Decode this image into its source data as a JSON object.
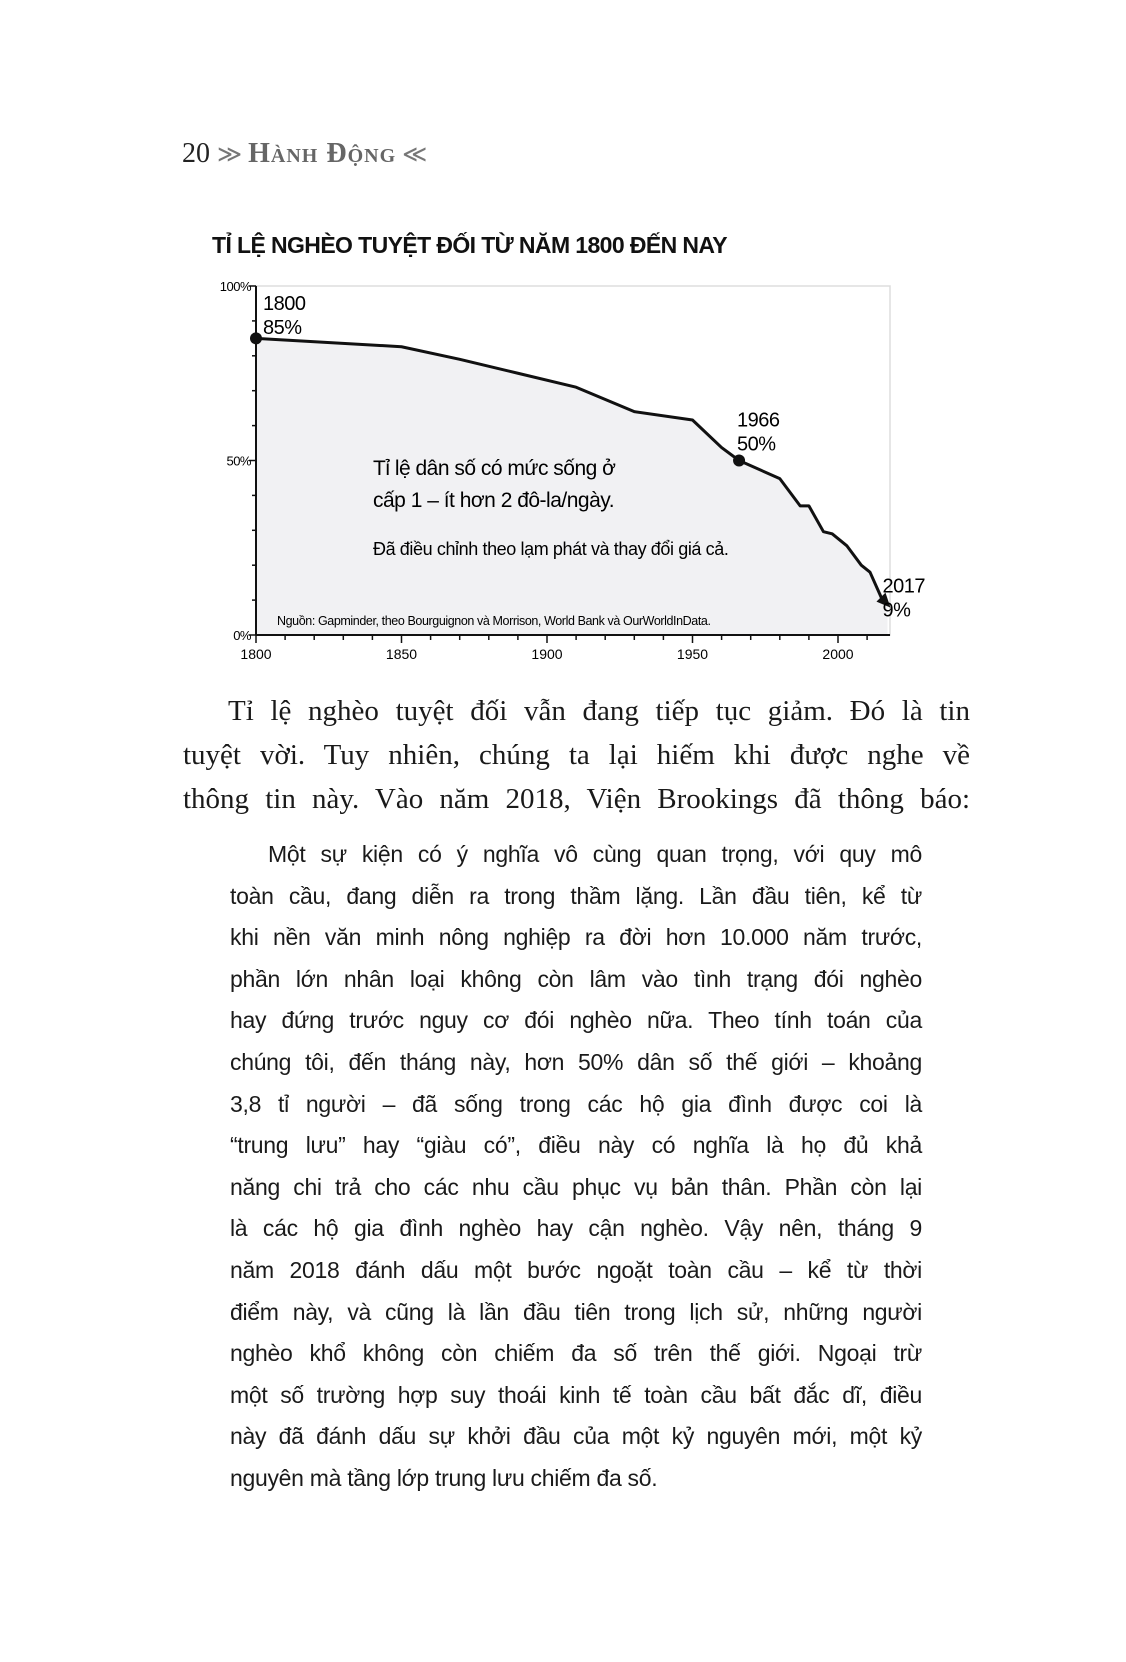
{
  "header": {
    "page_number": "20",
    "running_title": "Hành Động",
    "left_ornament": "≫",
    "right_ornament": "≪"
  },
  "chart_data": {
    "type": "area",
    "title": "TỈ LỆ NGHÈO TUYỆT ĐỐI TỪ NĂM 1800 ĐẾN NAY",
    "xlabel": "",
    "ylabel": "",
    "xlim": [
      1800,
      2018
    ],
    "ylim": [
      0,
      100
    ],
    "x_ticks": [
      "1800",
      "1850",
      "1900",
      "1950",
      "2000"
    ],
    "y_ticks": [
      "0%",
      "50%",
      "100%"
    ],
    "grid": false,
    "series": [
      {
        "x": [
          1800,
          1850,
          1870,
          1890,
          1910,
          1930,
          1950,
          1960,
          1966,
          1980,
          1987,
          1990,
          1995,
          1998,
          2003,
          2008,
          2011,
          2017
        ],
        "y": [
          85,
          82.6,
          79,
          75,
          71,
          64,
          61.6,
          53.7,
          50,
          44.8,
          37,
          37,
          29.6,
          29,
          25.6,
          20,
          18,
          9
        ]
      }
    ],
    "annotations": [
      {
        "year": "1800",
        "value": "85%"
      },
      {
        "year": "1966",
        "value": "50%"
      },
      {
        "year": "2017",
        "value": "9%"
      }
    ],
    "description_line1": "Tỉ lệ dân số có mức sống ở",
    "description_line2": "cấp 1 – ít hơn 2 đô-la/ngày.",
    "note": "Đã điều chỉnh theo lạm phát và thay đổi giá cả.",
    "source": "Nguồn: Gapminder, theo Bourguignon và Morrison, World Bank và OurWorldInData.",
    "colors": {
      "fill": "#f1f1f3",
      "line": "#111111"
    }
  },
  "body": {
    "paragraph_lines": [
      "Tỉ lệ nghèo tuyệt đối vẫn đang tiếp tục giảm. Đó là tin",
      "tuyệt vời. Tuy nhiên, chúng ta lại hiếm khi được nghe về",
      "thông tin này. Vào năm 2018, Viện Brookings đã thông báo:"
    ],
    "quote_lines": [
      "Một sự kiện có ý nghĩa vô cùng quan trọng, với quy mô",
      "toàn cầu, đang diễn ra trong thầm lặng. Lần đầu tiên, kể từ",
      "khi nền văn minh nông nghiệp ra đời hơn 10.000 năm trước,",
      "phần lớn nhân loại không còn lâm vào tình trạng đói nghèo",
      "hay đứng trước nguy cơ đói nghèo nữa. Theo tính toán của",
      "chúng tôi, đến tháng này, hơn 50% dân số thế giới – khoảng",
      "3,8 tỉ người – đã sống trong các hộ gia đình được coi là",
      "“trung lưu” hay “giàu có”, điều này có nghĩa là họ đủ khả",
      "năng chi trả cho các nhu cầu phục vụ bản thân. Phần còn lại",
      "là các hộ gia đình nghèo hay cận nghèo. Vậy nên, tháng 9",
      "năm 2018 đánh dấu một bước ngoặt toàn cầu – kể từ thời",
      "điểm này, và cũng là lần đầu tiên trong lịch sử, những người",
      "nghèo khổ không còn chiếm đa số trên thế giới. Ngoại trừ",
      "một số trường hợp suy thoái kinh tế toàn cầu bất đắc dĩ, điều",
      "này đã đánh dấu sự khởi đầu của một kỷ nguyên mới, một kỷ",
      "nguyên mà tầng lớp trung lưu chiếm đa số."
    ]
  }
}
